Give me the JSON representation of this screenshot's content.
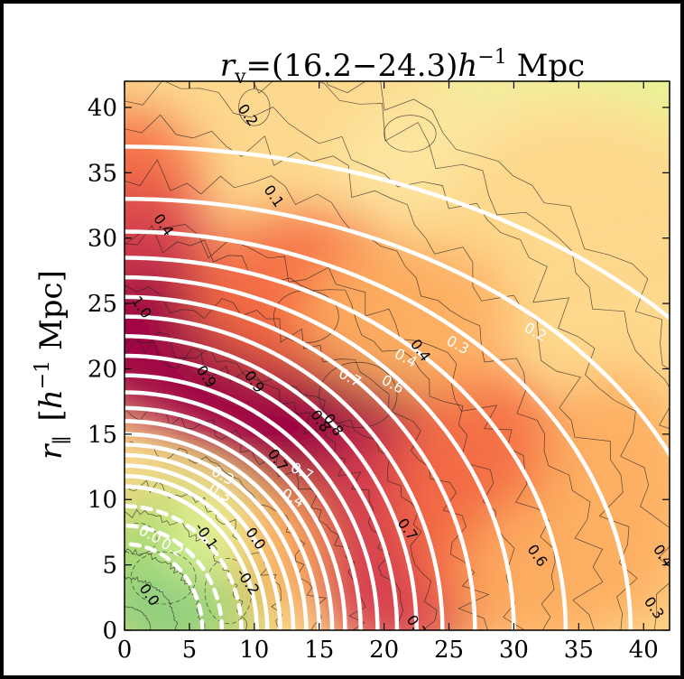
{
  "chart_data": {
    "type": "heatmap",
    "title": "r_v=(16.2–24.3)h⁻¹ Mpc",
    "title_parts": {
      "r": "r",
      "sub": "v",
      "body": "=(16.2−24.3)",
      "h": "h",
      "exp": "−1",
      "unit": " Mpc"
    },
    "ylabel_parts": {
      "r": "r",
      "sub": "∥",
      "bracket_open": "[",
      "h": "h",
      "exp": "−1",
      "unit": " Mpc]"
    },
    "xlabel": "",
    "xlim": [
      0,
      42
    ],
    "ylim": [
      0,
      42
    ],
    "xticks": [
      "0",
      "5",
      "10",
      "15",
      "20",
      "25",
      "30",
      "35",
      "40"
    ],
    "yticks": [
      "0",
      "5",
      "10",
      "15",
      "20",
      "25",
      "30",
      "35",
      "40"
    ],
    "colormap": [
      "#5e8c60",
      "#a6d96a",
      "#e6f598",
      "#fee08b",
      "#fdae61",
      "#f46d43",
      "#d53e4f",
      "#9e0142"
    ],
    "white_contour_levels": [
      1.0,
      0.9,
      0.8,
      0.7,
      0.6,
      0.5,
      0.4,
      0.3,
      0.2,
      0.1,
      0.0,
      -0.1,
      -0.2
    ],
    "white_contour_labels": [
      {
        "text": "0.2",
        "x": 31.5,
        "y": 22.5
      },
      {
        "text": "0.3",
        "x": 25.5,
        "y": 21.5
      },
      {
        "text": "0.4",
        "x": 21.5,
        "y": 20.5
      },
      {
        "text": "0.6",
        "x": 20.5,
        "y": 18.5
      },
      {
        "text": "0.7",
        "x": 17.2,
        "y": 19.0
      },
      {
        "text": "0.7",
        "x": 13.5,
        "y": 11.8
      },
      {
        "text": "0.4",
        "x": 12.8,
        "y": 9.8
      },
      {
        "text": "0.3",
        "x": 7.4,
        "y": 11.5
      },
      {
        "text": "0.3",
        "x": 7.2,
        "y": 10.2
      },
      {
        "text": "0.2",
        "x": 3.5,
        "y": 6.0
      },
      {
        "text": "0.0",
        "x": 1.8,
        "y": 7.0
      }
    ],
    "black_contour_labels": [
      {
        "text": "0.2",
        "x": 9.2,
        "y": 39.2
      },
      {
        "text": "0.1",
        "x": 11.2,
        "y": 33.0
      },
      {
        "text": "0.4",
        "x": 2.7,
        "y": 30.8
      },
      {
        "text": "1.0",
        "x": 1.0,
        "y": 24.5
      },
      {
        "text": "0.9",
        "x": 6.0,
        "y": 19.2
      },
      {
        "text": "0.9",
        "x": 9.7,
        "y": 18.8
      },
      {
        "text": "0.8",
        "x": 15.8,
        "y": 15.5
      },
      {
        "text": "0.8",
        "x": 14.8,
        "y": 15.8
      },
      {
        "text": "0.4",
        "x": 22.5,
        "y": 21.2
      },
      {
        "text": "0.7",
        "x": 11.5,
        "y": 12.8
      },
      {
        "text": "0.7",
        "x": 21.5,
        "y": 7.5
      },
      {
        "text": "0.6",
        "x": 31.5,
        "y": 5.5
      },
      {
        "text": "0.4",
        "x": 41.2,
        "y": 5.5
      },
      {
        "text": "0.3",
        "x": 40.5,
        "y": 1.5
      },
      {
        "text": "0.7",
        "x": 22.2,
        "y": 0.1
      },
      {
        "text": "-0.1",
        "x": 6.0,
        "y": 7.0
      },
      {
        "text": "-0.2",
        "x": 9.2,
        "y": 3.5
      },
      {
        "text": "0.0",
        "x": 1.6,
        "y": 2.5
      },
      {
        "text": "0.0",
        "x": 9.8,
        "y": 6.8
      }
    ],
    "grid": false
  }
}
